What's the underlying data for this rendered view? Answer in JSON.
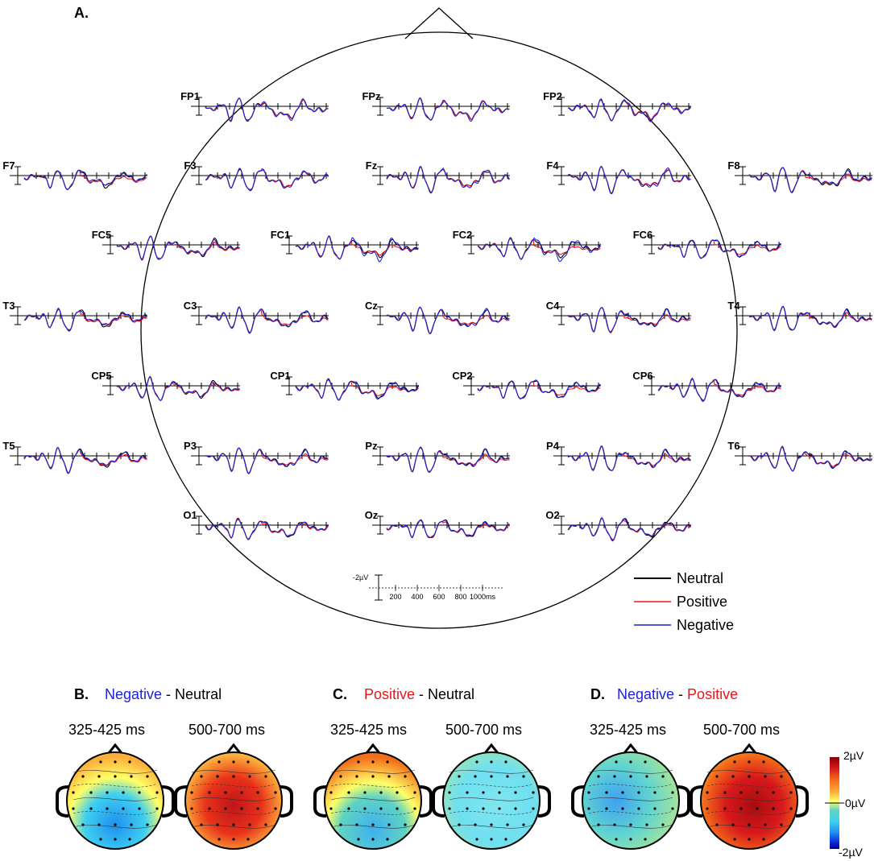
{
  "panel_a": {
    "label": "A."
  },
  "electrodes": [
    {
      "name": "FP1",
      "p": 1.0,
      "n": 1.15
    },
    {
      "name": "FPz",
      "p": 1.0,
      "n": 1.15
    },
    {
      "name": "FP2",
      "p": 1.0,
      "n": 1.2
    },
    {
      "name": "F7",
      "p": 0.55,
      "n": 0.75
    },
    {
      "name": "F3",
      "p": 1.0,
      "n": 1.15
    },
    {
      "name": "Fz",
      "p": 1.0,
      "n": 1.2
    },
    {
      "name": "F4",
      "p": 1.0,
      "n": 1.2
    },
    {
      "name": "F8",
      "p": 0.6,
      "n": 0.8
    },
    {
      "name": "FC5",
      "p": 0.7,
      "n": 0.85
    },
    {
      "name": "FC1",
      "p": 0.6,
      "n": 1.35
    },
    {
      "name": "FC2",
      "p": 0.5,
      "n": 1.35
    },
    {
      "name": "FC6",
      "p": 0.6,
      "n": 1.0
    },
    {
      "name": "T3",
      "p": 0.65,
      "n": 0.75
    },
    {
      "name": "C3",
      "p": 0.6,
      "n": 1.05
    },
    {
      "name": "Cz",
      "p": 0.55,
      "n": 1.1
    },
    {
      "name": "C4",
      "p": 0.55,
      "n": 1.0
    },
    {
      "name": "T4",
      "p": 0.75,
      "n": 0.95
    },
    {
      "name": "CP5",
      "p": 0.75,
      "n": 0.85
    },
    {
      "name": "CP1",
      "p": 0.6,
      "n": 1.1
    },
    {
      "name": "CP2",
      "p": 0.55,
      "n": 1.05
    },
    {
      "name": "CP6",
      "p": 0.6,
      "n": 0.95
    },
    {
      "name": "T5",
      "p": 0.7,
      "n": 0.8
    },
    {
      "name": "P3",
      "p": 0.65,
      "n": 1.05
    },
    {
      "name": "Pz",
      "p": 0.6,
      "n": 1.0
    },
    {
      "name": "P4",
      "p": 0.65,
      "n": 1.0
    },
    {
      "name": "T6",
      "p": 0.75,
      "n": 1.05
    },
    {
      "name": "O1",
      "p": 0.8,
      "n": 0.9
    },
    {
      "name": "Oz",
      "p": 0.8,
      "n": 0.9
    },
    {
      "name": "O2",
      "p": 0.8,
      "n": 0.9
    }
  ],
  "legend": [
    {
      "label": "Neutral",
      "color": "#000000"
    },
    {
      "label": "Positive",
      "color": "#e8161b"
    },
    {
      "label": "Negative",
      "color": "#1d22d8"
    }
  ],
  "scale_bar": {
    "amp_label": "-2µV",
    "ticks": [
      "200",
      "400",
      "600",
      "800",
      "1000ms"
    ]
  },
  "chart_data": {
    "type": "line",
    "title": "",
    "xlabel": "",
    "ylabel": "",
    "x_unit": "ms",
    "x_ticks": [
      200,
      400,
      600,
      800,
      1000
    ],
    "y_scale": "-2µV",
    "series": [
      {
        "name": "Neutral"
      },
      {
        "name": "Positive"
      },
      {
        "name": "Negative"
      }
    ]
  },
  "topo_panels": [
    {
      "id": "B",
      "label": "B.",
      "title": [
        {
          "text": "Negative",
          "color": "#1d22d8"
        },
        {
          "text": " - ",
          "color": "#000000"
        },
        {
          "text": "Neutral",
          "color": "#000000"
        }
      ],
      "windows": [
        "325-425 ms",
        "500-700 ms"
      ]
    },
    {
      "id": "C",
      "label": "C.",
      "title": [
        {
          "text": "Positive",
          "color": "#e8161b"
        },
        {
          "text": " - ",
          "color": "#000000"
        },
        {
          "text": "Neutral",
          "color": "#000000"
        }
      ],
      "windows": [
        "325-425 ms",
        "500-700 ms"
      ]
    },
    {
      "id": "D",
      "label": "D.",
      "title": [
        {
          "text": "Negative",
          "color": "#1d22d8"
        },
        {
          "text": " - ",
          "color": "#000000"
        },
        {
          "text": "Positive",
          "color": "#e8161b"
        }
      ],
      "windows": [
        "325-425 ms",
        "500-700 ms"
      ]
    }
  ],
  "colorbar": {
    "max_label": "2µV",
    "mid_label": "0µV",
    "min_label": "-2µV",
    "colors": [
      "#8b0000",
      "#d7191c",
      "#f46d1a",
      "#fdae3a",
      "#ffff66",
      "#9ee06a",
      "#5fd3c2",
      "#3fd0f0",
      "#1f8ff0",
      "#1030e0",
      "#000090"
    ]
  }
}
